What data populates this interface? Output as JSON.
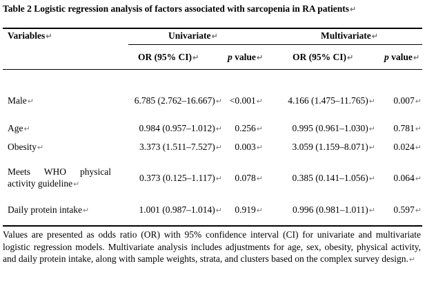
{
  "table": {
    "caption": "Table 2 Logistic regression analysis of factors associated with sarcopenia in RA patients",
    "headers": {
      "variables": "Variables",
      "univariate": "Univariate",
      "multivariate": "Multivariate",
      "or_ci": "OR (95% CI)",
      "p_italic": "p",
      "p_rest": " value"
    },
    "rows": [
      {
        "variable": "Male",
        "uni_or": "6.785 (2.762–16.667)",
        "uni_p": "<0.001",
        "multi_or": "4.166 (1.475–11.765)",
        "multi_p": "0.007"
      },
      {
        "variable": "Age",
        "uni_or": "0.984 (0.957–1.012)",
        "uni_p": "0.256",
        "multi_or": "0.995 (0.961–1.030)",
        "multi_p": "0.781"
      },
      {
        "variable": "Obesity",
        "uni_or": "3.373 (1.511–7.527)",
        "uni_p": "0.003",
        "multi_or": "3.059 (1.159–8.071)",
        "multi_p": "0.024"
      },
      {
        "variable": "Meets WHO physical activity guideline",
        "uni_or": "0.373 (0.125–1.117)",
        "uni_p": "0.078",
        "multi_or": "0.385 (0.141–1.056)",
        "multi_p": "0.064"
      },
      {
        "variable": "Daily protein intake",
        "uni_or": "1.001 (0.987–1.014)",
        "uni_p": "0.919",
        "multi_or": "0.996 (0.981–1.011)",
        "multi_p": "0.597"
      }
    ],
    "footnote": "Values are presented as odds ratio (OR) with 95% confidence interval (CI) for univariate and multivariate logistic regression models. Multivariate analysis includes adjustments for age, sex, obesity, physical activity, and daily protein intake, along with sample weights, strata, and clusters based on the complex survey design.",
    "paragraph_mark": "↵"
  }
}
